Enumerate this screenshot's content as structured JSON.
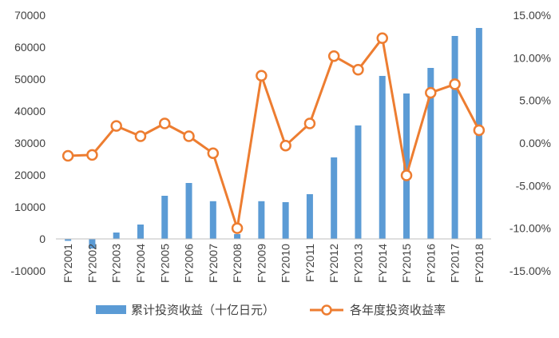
{
  "chart_data": {
    "type": "bar+line",
    "title": "",
    "xlabel": "",
    "ylabel": "",
    "y2label": "",
    "categories": [
      "FY2001",
      "FY2002",
      "FY2003",
      "FY2004",
      "FY2005",
      "FY2006",
      "FY2007",
      "FY2008",
      "FY2009",
      "FY2010",
      "FY2011",
      "FY2012",
      "FY2013",
      "FY2014",
      "FY2015",
      "FY2016",
      "FY2017",
      "FY2018"
    ],
    "series": [
      {
        "name": "累计投资收益（十亿日元）",
        "type": "bar",
        "axis": "left",
        "color": "#5B9BD5",
        "values": [
          -600,
          -3000,
          2000,
          4500,
          13500,
          17500,
          11800,
          1500,
          11800,
          11500,
          14000,
          25500,
          35500,
          51000,
          45500,
          53500,
          63500,
          66000
        ]
      },
      {
        "name": "各年度投资收益率",
        "type": "line",
        "axis": "right",
        "color": "#ED7D31",
        "values": [
          -1.5,
          -1.4,
          2.0,
          0.8,
          2.3,
          0.8,
          -1.2,
          -10.0,
          7.9,
          -0.3,
          2.3,
          10.2,
          8.6,
          12.3,
          -3.8,
          5.9,
          6.9,
          1.5
        ]
      }
    ],
    "ylim": [
      -10000,
      70000
    ],
    "yticks": [
      -10000,
      0,
      10000,
      20000,
      30000,
      40000,
      50000,
      60000,
      70000
    ],
    "ytick_labels": [
      "-10000",
      "0",
      "10000",
      "20000",
      "30000",
      "40000",
      "50000",
      "60000",
      "70000"
    ],
    "y2lim": [
      -15,
      15
    ],
    "y2ticks": [
      -15,
      -10,
      -5,
      0,
      5,
      10,
      15
    ],
    "y2tick_labels": [
      "-15.00%",
      "-10.00%",
      "-5.00%",
      "0.00%",
      "5.00%",
      "10.00%",
      "15.00%"
    ],
    "grid": false,
    "legend_position": "bottom"
  }
}
